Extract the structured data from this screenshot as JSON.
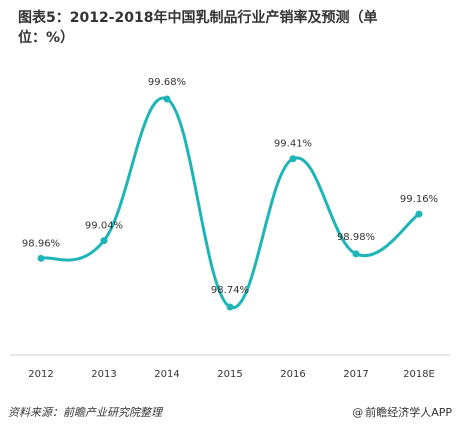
{
  "title": {
    "line1": "图表5：2012-2018年中国乳制品行业产销率及预测（单",
    "line2": "位：%）"
  },
  "footer": {
    "source": "资料来源：前瞻产业研究院整理",
    "brand_icon": "@",
    "brand": "前瞻经济学人APP"
  },
  "colors": {
    "line": "#1fb5b8",
    "axis": "#cfcfcf",
    "text": "#333333"
  },
  "chart_data": {
    "type": "line",
    "title": "图表5：2012-2018年中国乳制品行业产销率及预测（单位：%）",
    "x": [
      "2012",
      "2013",
      "2014",
      "2015",
      "2016",
      "2017",
      "2018E"
    ],
    "series": [
      {
        "values": [
          98.96,
          99.04,
          99.68,
          98.74,
          99.41,
          98.98,
          99.16
        ]
      }
    ],
    "data_labels": [
      "98.96%",
      "99.04%",
      "99.68%",
      "98.74%",
      "99.41%",
      "98.98%",
      "99.16%"
    ],
    "smooth": true,
    "xlabel": "",
    "ylabel": "",
    "grid": false,
    "legend": "none"
  }
}
